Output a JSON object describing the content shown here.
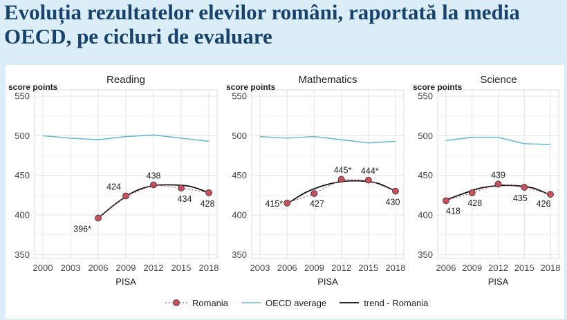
{
  "slide": {
    "title": "Evoluția rezultatelor elevilor români, raportată la media OECD, pe cicluri de evaluare"
  },
  "colors": {
    "romania": "#c9505a",
    "oecd": "#6bbad0",
    "trend": "#111111",
    "title": "#17426e",
    "grid": "#e3e3e3"
  },
  "legend": {
    "romania": "Romania",
    "oecd": "OECD average",
    "trend": "trend - Romania"
  },
  "chart_data": [
    {
      "type": "line",
      "title": "Reading",
      "ylabel": "score points",
      "xlabel": "PISA",
      "ylim": [
        345,
        558
      ],
      "yticks": [
        350,
        400,
        450,
        500,
        550
      ],
      "xticks": [
        2000,
        2003,
        2006,
        2009,
        2012,
        2015,
        2018
      ],
      "xlim": [
        2000,
        2018
      ],
      "series": [
        {
          "name": "Romania",
          "x": [
            2006,
            2009,
            2012,
            2015,
            2018
          ],
          "y": [
            396,
            424,
            438,
            434,
            428
          ],
          "labels": [
            "396*",
            "424",
            "438",
            "434",
            "428"
          ]
        },
        {
          "name": "OECD average",
          "x": [
            2000,
            2003,
            2006,
            2009,
            2012,
            2015,
            2018
          ],
          "y": [
            500,
            497,
            495,
            499,
            501,
            497,
            493
          ]
        },
        {
          "name": "trend - Romania",
          "x": [
            2006,
            2008,
            2010,
            2012,
            2014,
            2016,
            2018
          ],
          "y": [
            396,
            415,
            430,
            437,
            438,
            436,
            428
          ]
        }
      ]
    },
    {
      "type": "line",
      "title": "Mathematics",
      "ylabel": "score points",
      "xlabel": "PISA",
      "ylim": [
        345,
        558
      ],
      "yticks": [
        350,
        400,
        450,
        500,
        550
      ],
      "xticks": [
        2003,
        2006,
        2009,
        2012,
        2015,
        2018
      ],
      "xlim": [
        2003,
        2018
      ],
      "series": [
        {
          "name": "Romania",
          "x": [
            2006,
            2009,
            2012,
            2015,
            2018
          ],
          "y": [
            415,
            427,
            445,
            444,
            430
          ],
          "labels": [
            "415*",
            "427",
            "445*",
            "444*",
            "430"
          ]
        },
        {
          "name": "OECD average",
          "x": [
            2003,
            2006,
            2009,
            2012,
            2015,
            2018
          ],
          "y": [
            499,
            497,
            499,
            495,
            491,
            493
          ]
        },
        {
          "name": "trend - Romania",
          "x": [
            2006,
            2008,
            2010,
            2012,
            2014,
            2016,
            2018
          ],
          "y": [
            414,
            428,
            437,
            442,
            443,
            440,
            430
          ]
        }
      ]
    },
    {
      "type": "line",
      "title": "Science",
      "ylabel": "score points",
      "xlabel": "PISA",
      "ylim": [
        345,
        558
      ],
      "yticks": [
        350,
        400,
        450,
        500,
        550
      ],
      "xticks": [
        2006,
        2009,
        2012,
        2015,
        2018
      ],
      "xlim": [
        2006,
        2018
      ],
      "series": [
        {
          "name": "Romania",
          "x": [
            2006,
            2009,
            2012,
            2015,
            2018
          ],
          "y": [
            418,
            428,
            439,
            435,
            426
          ],
          "labels": [
            "418",
            "428",
            "439",
            "435",
            "426"
          ]
        },
        {
          "name": "OECD average",
          "x": [
            2006,
            2009,
            2012,
            2015,
            2018
          ],
          "y": [
            494,
            498,
            498,
            490,
            489
          ]
        },
        {
          "name": "trend - Romania",
          "x": [
            2006,
            2008,
            2010,
            2012,
            2014,
            2016,
            2018
          ],
          "y": [
            419,
            427,
            434,
            437,
            437,
            434,
            425
          ]
        }
      ]
    }
  ]
}
